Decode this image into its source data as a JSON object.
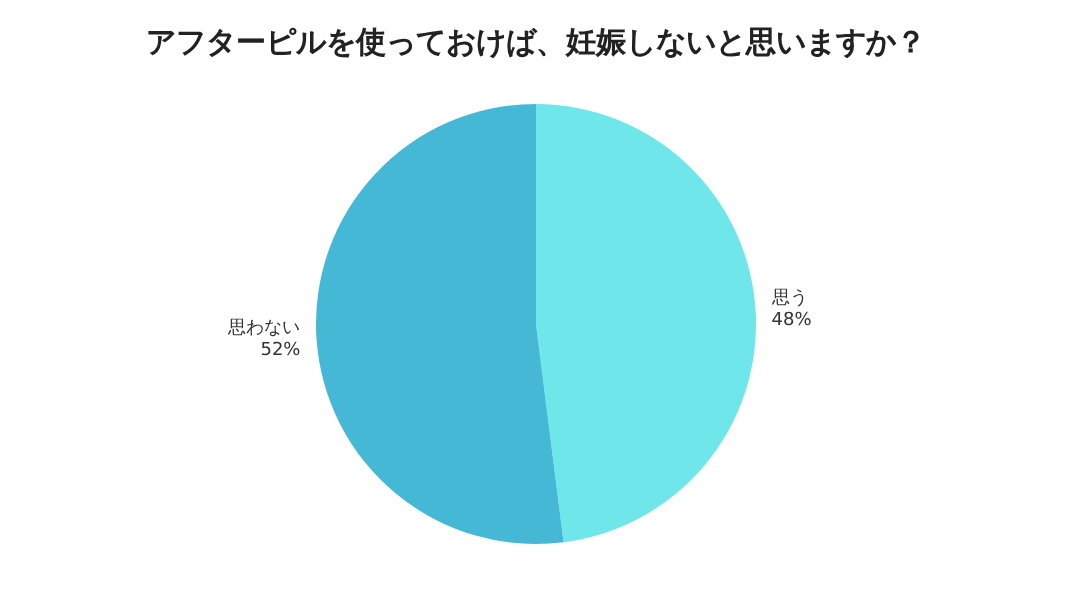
{
  "chart_data": {
    "type": "pie",
    "title": "アフターピルを使っておけば、妊娠しないと思いますか？",
    "categories": [
      "思う",
      "思わない"
    ],
    "values": [
      48,
      52
    ],
    "value_labels": [
      "48%",
      "52%"
    ],
    "colors": [
      "#6ee6ea",
      "#45b8d6"
    ],
    "legend": false
  }
}
